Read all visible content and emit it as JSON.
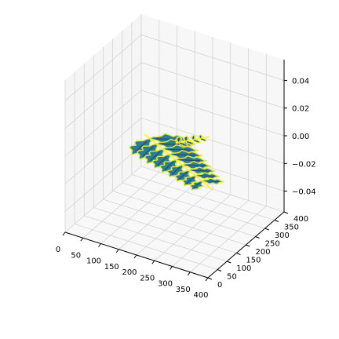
{
  "chart_data": {
    "type": "surface",
    "title": "",
    "xlabel": "",
    "ylabel": "",
    "zlabel": "",
    "xlim": [
      0,
      400
    ],
    "ylim": [
      0,
      400
    ],
    "zlim": [
      -0.055,
      0.055
    ],
    "x_ticks": [
      "0",
      "50",
      "100",
      "150",
      "200",
      "250",
      "300",
      "350",
      "400"
    ],
    "y_ticks": [
      "0",
      "50",
      "100",
      "150",
      "200",
      "250",
      "300",
      "350",
      "400"
    ],
    "z_ticks": [
      "−0.04",
      "−0.02",
      "0.00",
      "0.02",
      "0.04"
    ],
    "z_tick_values": [
      -0.04,
      -0.02,
      0.0,
      0.02,
      0.04
    ],
    "grid": true,
    "pane_color": "#f2f2f2",
    "grid_color": "#d4d4d4",
    "surface": {
      "description_z": 0.0,
      "colormap": "viridis",
      "edge_color": "#dfe84a",
      "fill_color": "#2a7f8e",
      "dark_color": "#31466f",
      "rachis_color": "#fdf252",
      "main_frond": {
        "base": [
          110,
          210
        ],
        "tip": [
          380,
          60
        ],
        "leaflets": 9
      },
      "small_frond": {
        "base": [
          195,
          215
        ],
        "tip": [
          250,
          290
        ],
        "leaflets": 4
      }
    }
  }
}
